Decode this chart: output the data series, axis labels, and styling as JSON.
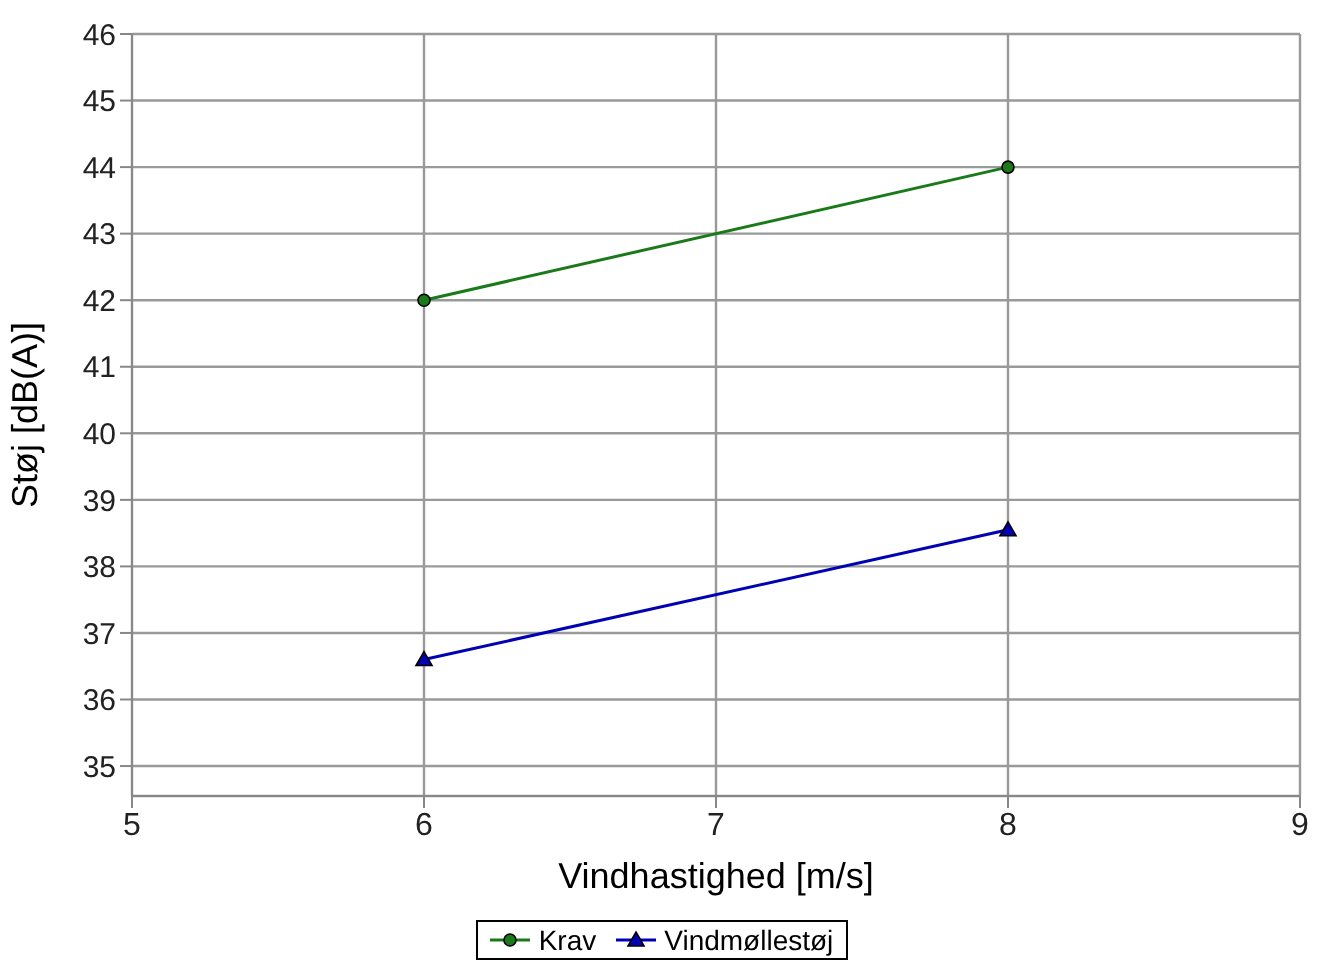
{
  "chart_data": {
    "type": "line",
    "xlabel": "Vindhastighed [m/s]",
    "ylabel": "Støj [dB(A)]",
    "x": [
      6,
      8
    ],
    "series": [
      {
        "name": "Krav",
        "color": "#1a7a1a",
        "marker": "circle",
        "values": [
          42,
          44
        ]
      },
      {
        "name": "Vindmøllestøj",
        "color": "#0000b4",
        "marker": "triangle",
        "values": [
          36.6,
          38.55
        ]
      }
    ],
    "xlim": [
      5,
      9
    ],
    "xticks": [
      5,
      6,
      7,
      8,
      9
    ],
    "ylim": [
      34.55,
      46
    ],
    "yticks": [
      35,
      36,
      37,
      38,
      39,
      40,
      41,
      42,
      43,
      44,
      45,
      46
    ],
    "grid": true,
    "legend": "bottom",
    "line_style": "solid"
  }
}
